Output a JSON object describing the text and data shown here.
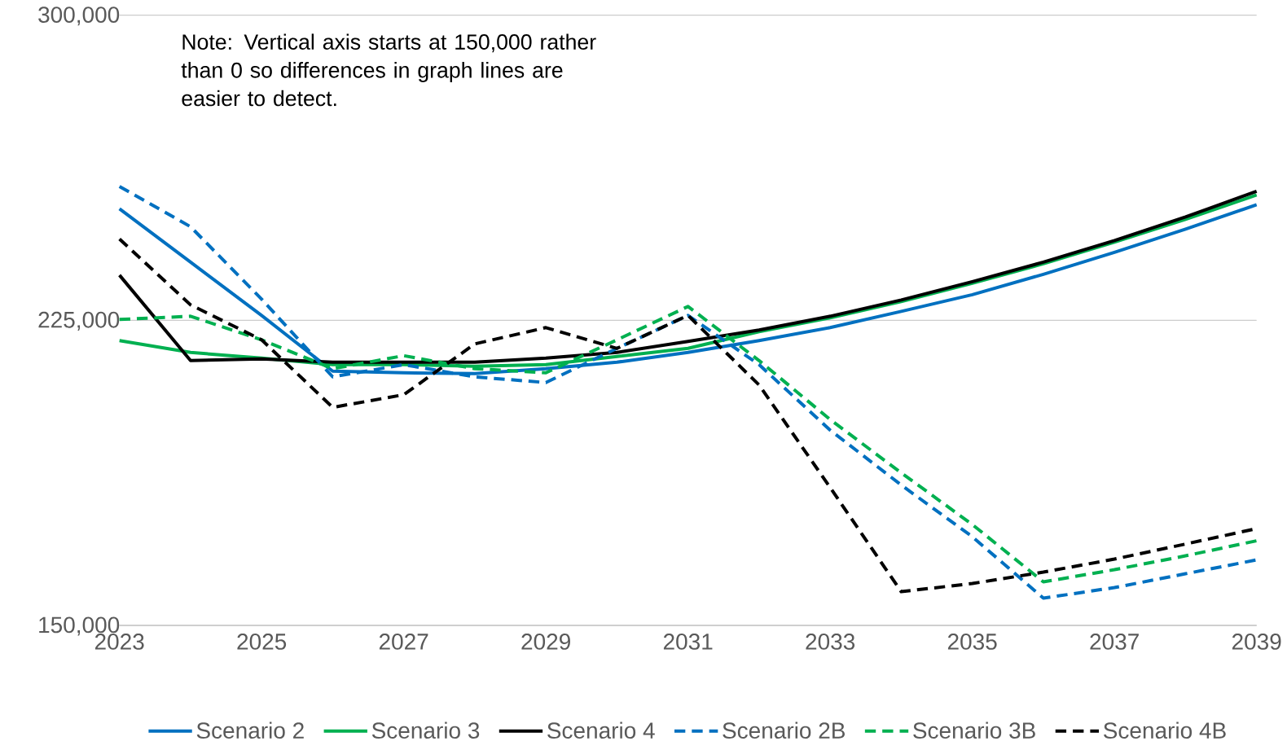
{
  "chart_data": {
    "type": "line",
    "annotations": [
      "Note: Vertical axis starts at 150,000 rather than 0 so differences in graph lines are easier to detect."
    ],
    "x": [
      2023,
      2024,
      2025,
      2026,
      2027,
      2028,
      2029,
      2030,
      2031,
      2032,
      2033,
      2034,
      2035,
      2036,
      2037,
      2038,
      2039
    ],
    "xlim": [
      2023,
      2039
    ],
    "xticks": [
      2023,
      2025,
      2027,
      2029,
      2031,
      2033,
      2035,
      2037,
      2039
    ],
    "ylim": [
      150000,
      300000
    ],
    "yticks": [
      {
        "value": 150000,
        "label": "150,000"
      },
      {
        "value": 225000,
        "label": "225,000"
      },
      {
        "value": 300000,
        "label": "300,000"
      }
    ],
    "grid": "y",
    "legend": "bottom",
    "marker": "none",
    "series": [
      {
        "name": "Scenario 2",
        "color": "#0070c0",
        "line_style": "solid",
        "values": [
          252400,
          239300,
          226200,
          212500,
          212100,
          211900,
          213100,
          214700,
          217100,
          220000,
          223200,
          227200,
          231300,
          236300,
          241700,
          247400,
          253400
        ]
      },
      {
        "name": "Scenario 3",
        "color": "#00b050",
        "line_style": "solid",
        "values": [
          220000,
          217100,
          215700,
          214100,
          214100,
          213700,
          214100,
          216100,
          218100,
          222200,
          225600,
          229600,
          234100,
          238900,
          244200,
          249800,
          255800
        ]
      },
      {
        "name": "Scenario 4",
        "color": "#000000",
        "line_style": "solid",
        "values": [
          236100,
          215100,
          215500,
          214700,
          214700,
          214700,
          215700,
          217100,
          219800,
          222600,
          226000,
          230000,
          234500,
          239300,
          244600,
          250400,
          256700
        ]
      },
      {
        "name": "Scenario 2B",
        "color": "#0070c0",
        "line_style": "dashed",
        "values": [
          257900,
          248000,
          230200,
          211100,
          214100,
          211100,
          209700,
          218100,
          226200,
          214100,
          198000,
          184500,
          171800,
          156700,
          159300,
          162700,
          166100
        ]
      },
      {
        "name": "Scenario 3B",
        "color": "#00b050",
        "line_style": "dashed",
        "values": [
          225200,
          226000,
          220200,
          213100,
          216300,
          213100,
          212100,
          220200,
          228400,
          215100,
          200600,
          187500,
          174800,
          160700,
          163700,
          167100,
          170800
        ]
      },
      {
        "name": "Scenario 4B",
        "color": "#000000",
        "line_style": "dashed",
        "values": [
          245000,
          228800,
          220200,
          203600,
          206700,
          219200,
          223200,
          218100,
          226200,
          209100,
          183900,
          158300,
          160300,
          163100,
          166300,
          170000,
          173800
        ]
      }
    ]
  }
}
